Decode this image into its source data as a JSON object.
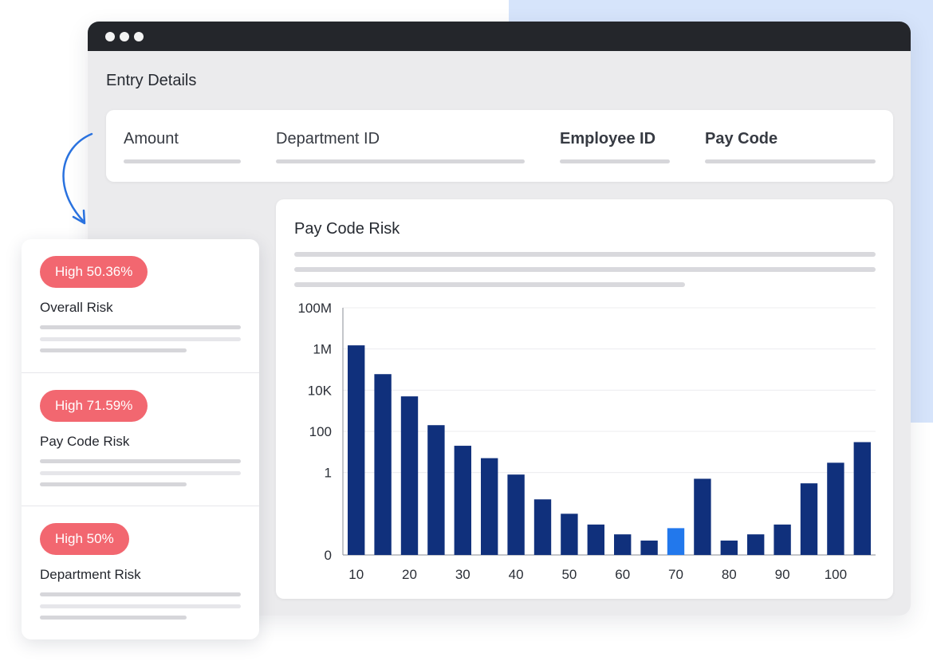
{
  "window": {
    "title": "Entry Details"
  },
  "fields": [
    {
      "label": "Amount"
    },
    {
      "label": "Department ID"
    },
    {
      "label": "Employee ID"
    },
    {
      "label": "Pay Code"
    }
  ],
  "risk_panel": {
    "items": [
      {
        "badge": "High 50.36%",
        "name": "Overall Risk"
      },
      {
        "badge": "High 71.59%",
        "name": "Pay Code Risk"
      },
      {
        "badge": "High 50%",
        "name": "Department Risk"
      }
    ]
  },
  "chart_data": {
    "type": "bar",
    "title": "Pay Code Risk",
    "y_scale": "log",
    "y_ticks": [
      "100M",
      "1M",
      "10K",
      "100",
      "1",
      "0"
    ],
    "x_ticks": [
      "10",
      "20",
      "30",
      "40",
      "50",
      "60",
      "70",
      "80",
      "90",
      "100"
    ],
    "categories": [
      10,
      15,
      20,
      25,
      30,
      35,
      40,
      45,
      50,
      55,
      60,
      65,
      70,
      75,
      80,
      85,
      90,
      95,
      100,
      105
    ],
    "values": [
      1500000,
      60000,
      5000,
      200,
      20,
      5,
      0.8,
      0.05,
      0.01,
      0.003,
      0.001,
      0.0005,
      0.002,
      0.5,
      0.0005,
      0.001,
      0.003,
      0.3,
      3,
      30
    ],
    "highlight_index": 12,
    "colors": {
      "bar": "#10307c",
      "highlight": "#2278ec",
      "badge": "#f26770",
      "accent_bg": "#d6e4fb"
    },
    "grid": true
  },
  "icons": {
    "arrow": "curved-arrow-icon"
  }
}
